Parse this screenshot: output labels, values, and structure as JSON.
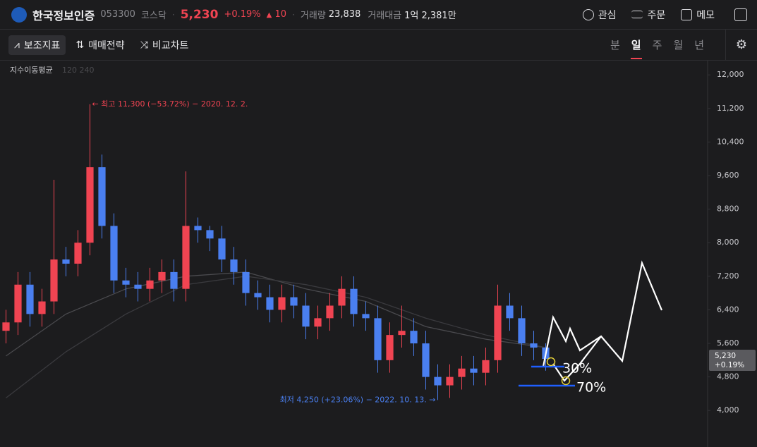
{
  "header": {
    "name": "한국정보인증",
    "code": "053300",
    "market": "코스닥",
    "price": "5,230",
    "change_pct": "+0.19%",
    "change": "10",
    "volume_label": "거래량",
    "volume": "23,838",
    "amount_label": "거래대금",
    "amount": "1억 2,381만",
    "actions": [
      "관심",
      "주문",
      "메모"
    ]
  },
  "toolbar": {
    "tools": [
      "보조지표",
      "매매전략",
      "비교차트"
    ],
    "periods": [
      "분",
      "일",
      "주",
      "월",
      "년"
    ],
    "active_period": 1
  },
  "chart_data": {
    "type": "candlestick",
    "indicator": "지수이동평균",
    "indicator_params": "120 240",
    "open": [
      5900,
      6100,
      7000,
      6300,
      6600,
      7600,
      7500,
      8000,
      9800,
      8400,
      7100,
      7000,
      6900,
      7100,
      7300,
      6900,
      8400,
      8300,
      8100,
      7600,
      7300,
      6800,
      6700,
      6400,
      6700,
      6500,
      6000,
      6200,
      6500,
      6900,
      6300,
      6200,
      5200,
      5800,
      5900,
      5600,
      4800,
      4600,
      4800,
      5000,
      4900,
      5200,
      6500,
      6200,
      5600,
      5500
    ],
    "high": [
      6400,
      7300,
      7300,
      6900,
      9500,
      7900,
      8300,
      11300,
      10100,
      8700,
      7400,
      7300,
      7400,
      7600,
      7600,
      9700,
      8600,
      8400,
      8400,
      7900,
      7600,
      7100,
      7000,
      7000,
      7000,
      6800,
      6500,
      6800,
      7200,
      7200,
      6600,
      6500,
      6100,
      6500,
      6200,
      5900,
      5100,
      5100,
      5300,
      5300,
      5500,
      7000,
      6800,
      6500,
      5900,
      5600
    ],
    "low": [
      5600,
      5800,
      6000,
      6000,
      6300,
      7200,
      7200,
      7700,
      8100,
      6800,
      6700,
      6600,
      6600,
      6800,
      6600,
      6600,
      8000,
      7800,
      7300,
      7000,
      6500,
      6400,
      6100,
      6100,
      6200,
      5700,
      5700,
      5900,
      6200,
      6000,
      5900,
      4900,
      4900,
      5500,
      5300,
      4500,
      4250,
      4300,
      4500,
      4600,
      4600,
      4900,
      5900,
      5300,
      5200,
      4950
    ],
    "close": [
      6100,
      7000,
      6300,
      6600,
      7600,
      7500,
      8000,
      9800,
      8400,
      7100,
      7000,
      6900,
      7100,
      7300,
      6900,
      8400,
      8300,
      8100,
      7600,
      7300,
      6800,
      6700,
      6400,
      6700,
      6500,
      6000,
      6200,
      6500,
      6900,
      6300,
      6200,
      5200,
      5800,
      5900,
      5600,
      4800,
      4600,
      4800,
      5000,
      4900,
      5200,
      6500,
      6200,
      5600,
      5500,
      5230
    ],
    "ma_x": [
      0,
      5,
      10,
      15,
      20,
      25,
      30,
      35,
      40,
      45
    ],
    "ma": [
      {
        "values": [
          5300,
          6300,
          6900,
          7200,
          7300,
          6900,
          6600,
          6000,
          5700,
          5500
        ],
        "color": "#4a4a4e"
      },
      {
        "values": [
          4300,
          5400,
          6300,
          7000,
          7200,
          7000,
          6700,
          6200,
          5800,
          5500
        ],
        "color": "#3a3a3e"
      }
    ],
    "up_color": "#f04452",
    "down_color": "#4a7ff0",
    "ylim": [
      3130,
      12340
    ],
    "yticks": [
      {
        "value": 4000,
        "label": "4,000"
      },
      {
        "value": 4800,
        "label": "4,800"
      },
      {
        "value": 5600,
        "label": "5,600"
      },
      {
        "value": 6400,
        "label": "6,400"
      },
      {
        "value": 7200,
        "label": "7,200"
      },
      {
        "value": 8000,
        "label": "8,000"
      },
      {
        "value": 8800,
        "label": "8,800"
      },
      {
        "value": 9600,
        "label": "9,600"
      },
      {
        "value": 10400,
        "label": "10,400"
      },
      {
        "value": 11200,
        "label": "11,200"
      },
      {
        "value": 12000,
        "label": "12,000"
      }
    ],
    "high_annotation": {
      "index": 7,
      "text": "← 최고 11,300 (−53.72%) − 2020. 12. 2."
    },
    "low_annotation": {
      "index": 36,
      "text": "최저 4,250 (+23.06%) − 2022. 10. 13. →"
    },
    "price_tag": {
      "price": "5,230",
      "change": "+0.19%"
    },
    "drawing_labels": [
      "30%",
      "70%"
    ]
  }
}
